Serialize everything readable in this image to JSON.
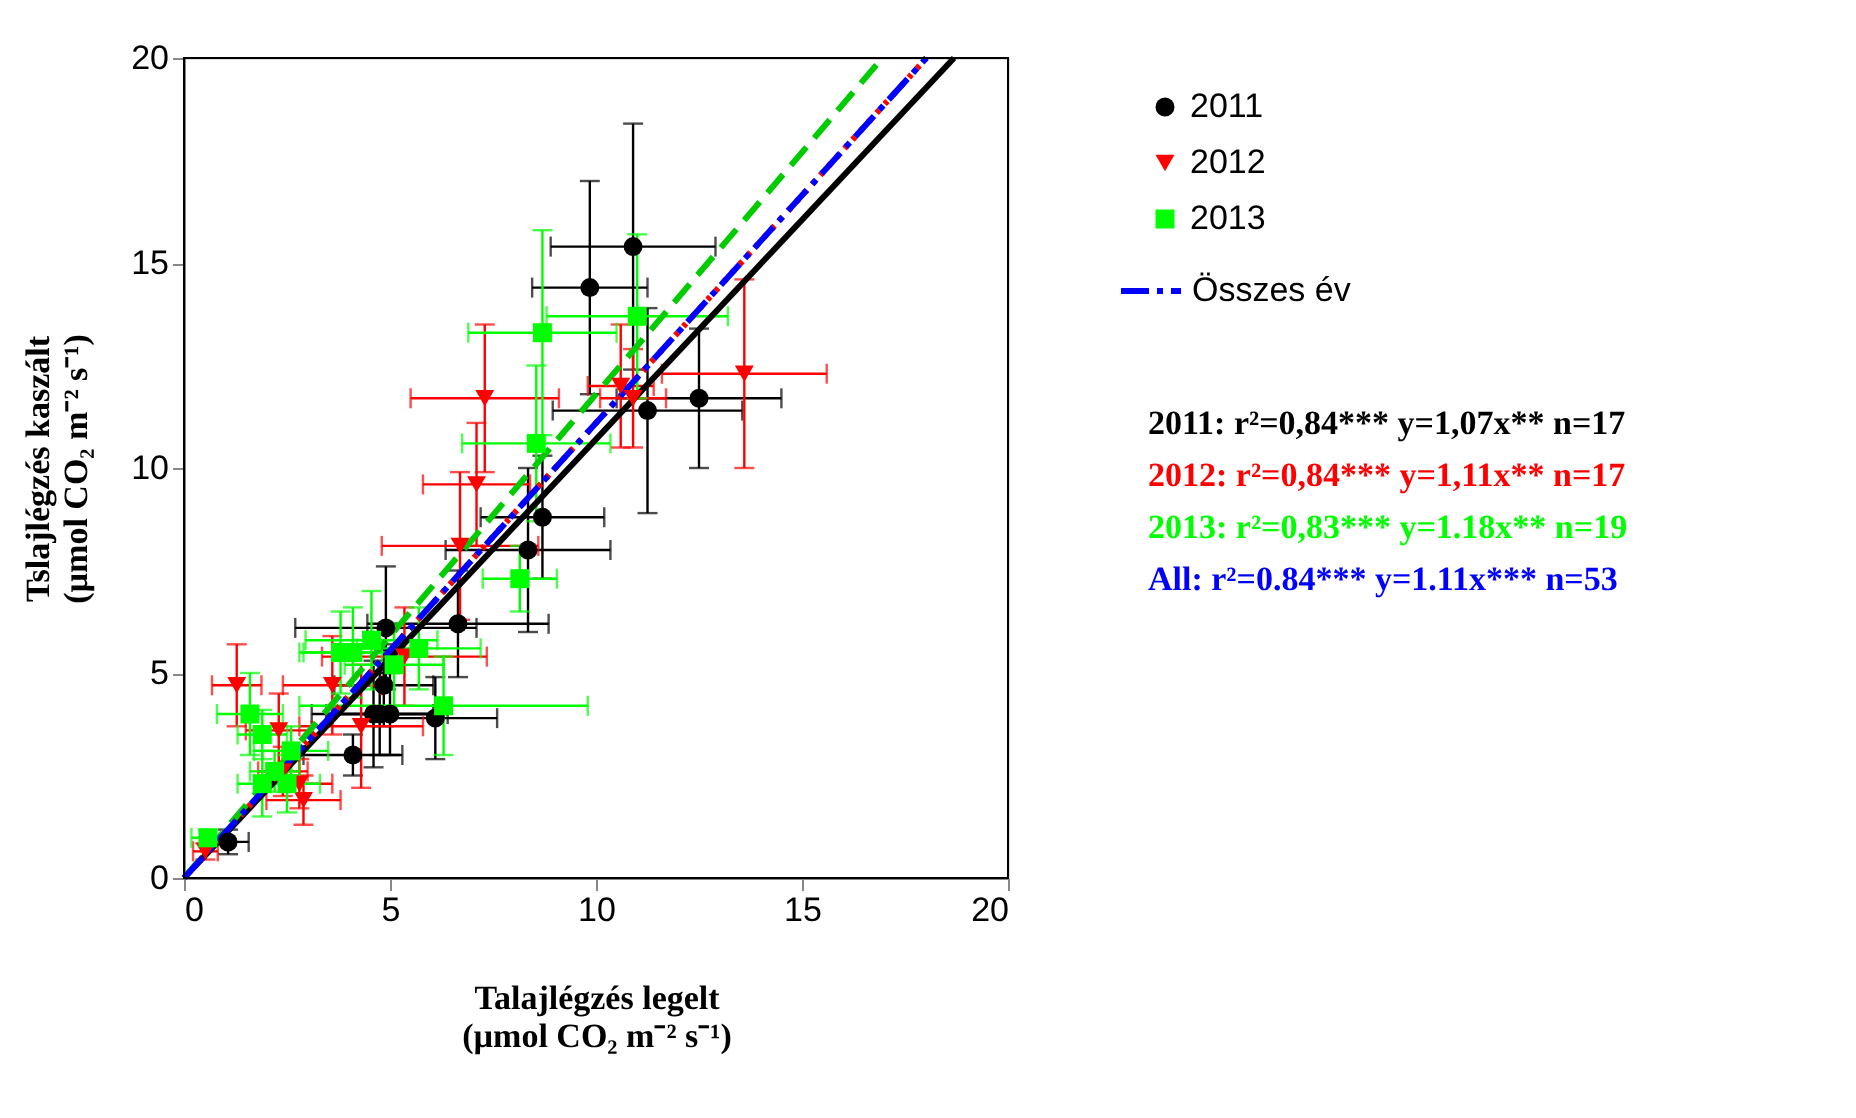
{
  "chart_data": {
    "type": "scatter",
    "xlabel": "Talajlégzés legelt\n(µmol CO₂ m⁻² s⁻¹)",
    "ylabel": "Tslajlégzés kaszált\n(µmol CO₂ m⁻² s⁻¹)",
    "xlim": [
      0,
      20
    ],
    "ylim": [
      0,
      20
    ],
    "xticks": [
      0,
      5,
      10,
      15,
      20
    ],
    "yticks": [
      0,
      5,
      10,
      15,
      20
    ],
    "grid": false,
    "legend": "right",
    "series": [
      {
        "name": "2011",
        "color": "#000000",
        "marker": "circle",
        "x": [
          1.07,
          4.1,
          4.6,
          5.0,
          4.85,
          4.9,
          6.1,
          6.65,
          8.35,
          8.7,
          9.85,
          10.9,
          11.25,
          12.5,
          4.75
        ],
        "values": [
          0.88,
          3.0,
          4.0,
          4.0,
          4.7,
          6.1,
          3.9,
          6.2,
          8.0,
          8.8,
          14.4,
          15.4,
          11.4,
          11.7,
          4.0
        ],
        "xerrors": [
          0.5,
          1.2,
          1.5,
          1.4,
          1.2,
          2.2,
          1.5,
          2.2,
          2.0,
          1.5,
          1.4,
          2.0,
          2.3,
          2.0,
          1.3
        ],
        "errors": [
          0.3,
          0.5,
          1.3,
          1.0,
          1.0,
          1.5,
          1.0,
          1.3,
          2.0,
          1.5,
          2.6,
          3.0,
          2.5,
          1.7,
          1.0
        ]
      },
      {
        "name": "2012",
        "color": "#ff0000",
        "marker": "triangle",
        "x": [
          0.52,
          1.28,
          2.3,
          2.8,
          2.9,
          3.6,
          4.3,
          5.35,
          6.7,
          7.1,
          7.3,
          10.6,
          13.6,
          2.4,
          10.9
        ],
        "values": [
          0.65,
          4.7,
          3.6,
          2.3,
          1.9,
          4.7,
          3.7,
          5.4,
          8.1,
          9.6,
          11.7,
          12.0,
          12.3,
          2.6,
          11.7
        ],
        "xerrors": [
          0.3,
          0.6,
          0.8,
          0.8,
          0.9,
          1.2,
          1.5,
          2.0,
          1.9,
          1.3,
          1.8,
          0.8,
          2.0,
          0.6,
          0.8
        ],
        "errors": [
          0.2,
          1.0,
          0.9,
          0.6,
          0.6,
          1.2,
          1.5,
          1.2,
          1.8,
          1.5,
          1.8,
          1.5,
          2.3,
          0.6,
          1.2
        ]
      },
      {
        "name": "2013",
        "color": "#00ff00",
        "marker": "square",
        "x": [
          0.58,
          1.6,
          1.9,
          1.9,
          2.5,
          2.6,
          3.8,
          4.1,
          4.55,
          5.7,
          6.3,
          8.15,
          8.55,
          8.7,
          11.0,
          5.1,
          2.2
        ],
        "values": [
          0.98,
          4.0,
          3.5,
          2.3,
          2.3,
          3.1,
          5.5,
          5.5,
          5.8,
          5.6,
          4.2,
          7.3,
          10.6,
          13.3,
          13.7,
          5.2,
          2.6
        ],
        "xerrors": [
          0.4,
          0.8,
          0.6,
          0.6,
          0.8,
          0.9,
          1.0,
          1.2,
          1.6,
          1.5,
          3.5,
          0.9,
          1.8,
          1.8,
          2.2,
          1.2,
          0.6
        ],
        "errors": [
          0.2,
          1.0,
          0.6,
          0.8,
          0.7,
          0.6,
          1.0,
          1.1,
          1.2,
          1.0,
          1.2,
          0.8,
          1.9,
          2.5,
          2.0,
          1.0,
          0.5
        ]
      },
      {
        "color": "#000000",
        "type": "line",
        "line_style": "solid",
        "x": [
          0,
          18.69
        ],
        "values": [
          0,
          20
        ]
      },
      {
        "color": "#ff0000",
        "type": "line",
        "line_style": "dotted",
        "x": [
          0,
          18.02
        ],
        "values": [
          0,
          20
        ]
      },
      {
        "color": "#00cc00",
        "type": "line",
        "line_style": "dashed",
        "x": [
          0,
          16.95
        ],
        "values": [
          0,
          20
        ]
      },
      {
        "name": "Összes év",
        "color": "#0000ff",
        "type": "line",
        "line_style": "dashdot",
        "x": [
          0,
          18.02
        ],
        "values": [
          0,
          20
        ]
      }
    ],
    "annotations": [
      "2011: r²=0,84*** y=1,07x** n=17",
      "2012: r²=0,84*** y=1,11x** n=17",
      "2013: r²=0,83*** y=1.18x** n=19",
      "All:    r²=0.84*** y=1.11x*** n=53"
    ]
  }
}
